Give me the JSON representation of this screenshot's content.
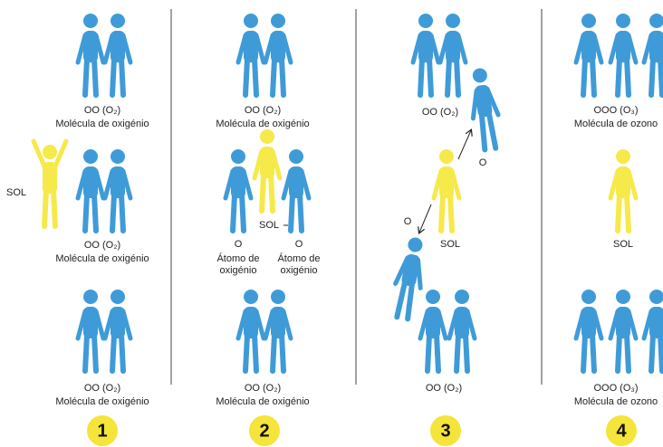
{
  "panels": [
    {
      "number": "1",
      "labels": [
        "OO (O₂)",
        "Molécula de oxigénio",
        "SOL",
        "OO (O₂)",
        "Molécula de oxigénio",
        "OO (O₂)",
        "Molécula de oxigénio"
      ]
    },
    {
      "number": "2",
      "labels": [
        "OO (O₂)",
        "Molécula de oxigénio",
        "SOL",
        "O",
        "Átomo de",
        "oxigénio",
        "O",
        "Átomo de",
        "oxigénio",
        "OO (O₂)",
        "Molécula de oxigénio"
      ]
    },
    {
      "number": "3",
      "labels": [
        "OO (O₂)",
        "O",
        "SOL",
        "O",
        "OO (O₂)"
      ]
    },
    {
      "number": "4",
      "labels": [
        "OOO (O₃)",
        "Molécula de ozono",
        "SOL",
        "OOO (O₃)",
        "Molécula de ozono"
      ]
    }
  ]
}
